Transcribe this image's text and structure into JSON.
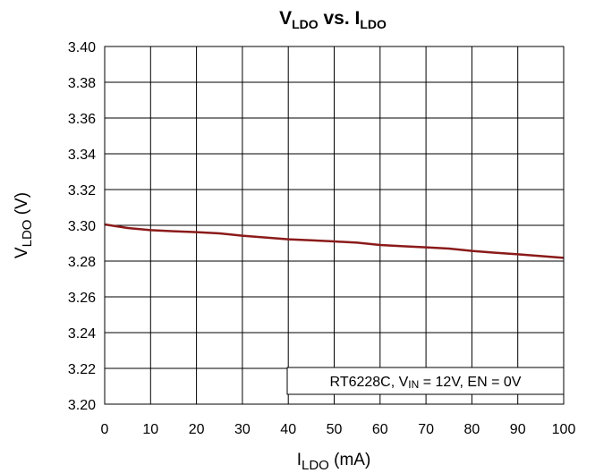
{
  "chart_data": {
    "type": "line",
    "title": {
      "v_main": "V",
      "v_sub": "LDO",
      "vs": " vs. ",
      "i_main": "I",
      "i_sub": "LDO"
    },
    "xlabel": {
      "main": "I",
      "sub": "LDO",
      "unit": " (mA)"
    },
    "ylabel": {
      "main": "V",
      "sub": "LDO",
      "unit": " (V)"
    },
    "xlim": [
      0,
      100
    ],
    "ylim": [
      3.2,
      3.4
    ],
    "x_ticks": [
      "0",
      "10",
      "20",
      "30",
      "40",
      "50",
      "60",
      "70",
      "80",
      "90",
      "100"
    ],
    "y_ticks": [
      "3.20",
      "3.22",
      "3.24",
      "3.26",
      "3.28",
      "3.30",
      "3.32",
      "3.34",
      "3.36",
      "3.38",
      "3.40"
    ],
    "grid": true,
    "series": [
      {
        "color": "#8b1a1a",
        "x": [
          0,
          5,
          10,
          15,
          20,
          25,
          30,
          35,
          40,
          45,
          50,
          55,
          60,
          65,
          70,
          75,
          80,
          85,
          90,
          95,
          100
        ],
        "y": [
          3.3005,
          3.2985,
          3.2973,
          3.2967,
          3.2962,
          3.2955,
          3.2942,
          3.2932,
          3.2922,
          3.2916,
          3.291,
          3.2903,
          3.289,
          3.2883,
          3.2877,
          3.287,
          3.2857,
          3.2847,
          3.2838,
          3.2828,
          3.2818
        ]
      }
    ],
    "annotation": {
      "prefix": "RT6228C, V",
      "sub": "IN",
      "suffix": " = 12V, EN = 0V"
    }
  }
}
